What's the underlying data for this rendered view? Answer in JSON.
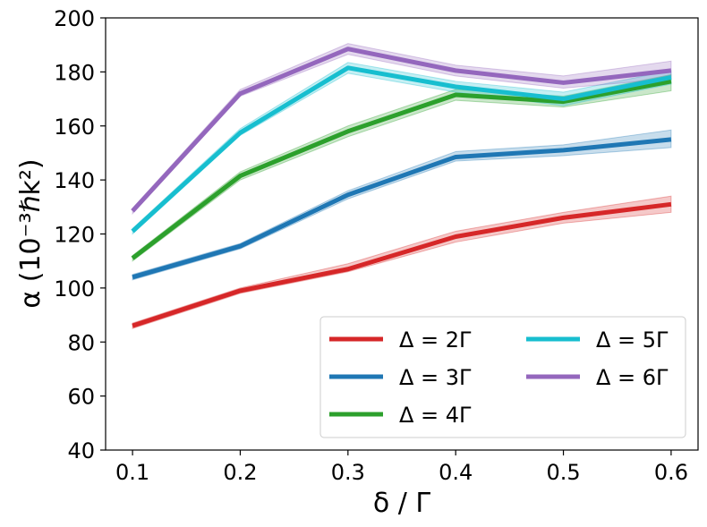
{
  "chart_data": {
    "type": "line",
    "title": "",
    "xlabel": "δ / Γ",
    "ylabel": "α (10⁻³ℏk²)",
    "x": [
      0.1,
      0.2,
      0.3,
      0.4,
      0.5,
      0.6
    ],
    "x_tick_labels": [
      "0.1",
      "0.2",
      "0.3",
      "0.4",
      "0.5",
      "0.6"
    ],
    "y_ticks": [
      40,
      60,
      80,
      100,
      120,
      140,
      160,
      180,
      200
    ],
    "y_tick_labels": [
      "40",
      "60",
      "80",
      "100",
      "120",
      "140",
      "160",
      "180",
      "200"
    ],
    "xlim": [
      0.075,
      0.625
    ],
    "ylim": [
      40,
      200
    ],
    "grid": false,
    "legend_position": "lower-right",
    "legend_columns": 2,
    "series": [
      {
        "name": "Δ = 2Γ",
        "color": "#d62728",
        "values": [
          86,
          99,
          107,
          119,
          126,
          131
        ],
        "lower": [
          85,
          98,
          106,
          117,
          124,
          128
        ],
        "upper": [
          87,
          100,
          109,
          121,
          128,
          134
        ]
      },
      {
        "name": "Δ = 3Γ",
        "color": "#1f77b4",
        "values": [
          104,
          115.5,
          134.5,
          148.5,
          151,
          155
        ],
        "lower": [
          103,
          114.5,
          133,
          147,
          149,
          152
        ],
        "upper": [
          105,
          116.5,
          136,
          150.5,
          153,
          158.5
        ]
      },
      {
        "name": "Δ = 4Γ",
        "color": "#2ca02c",
        "values": [
          111,
          141.5,
          158,
          171.5,
          169,
          176.5
        ],
        "lower": [
          110,
          140,
          156,
          169.5,
          167,
          173
        ],
        "upper": [
          112,
          143,
          160,
          173.5,
          171,
          179
        ]
      },
      {
        "name": "Δ = 5Γ",
        "color": "#17becf",
        "values": [
          121,
          157.5,
          181.5,
          174.5,
          170,
          178
        ],
        "lower": [
          120,
          156.5,
          179.5,
          172.5,
          167.5,
          175.5
        ],
        "upper": [
          122,
          159,
          183.5,
          176.5,
          172.5,
          180.5
        ]
      },
      {
        "name": "Δ = 6Γ",
        "color": "#9467bd",
        "values": [
          128.5,
          172,
          188.5,
          180.5,
          176,
          180.5
        ],
        "lower": [
          127.5,
          171,
          186.5,
          178.5,
          174,
          177.5
        ],
        "upper": [
          129.5,
          173.5,
          190.5,
          182.5,
          178.5,
          184
        ]
      }
    ]
  }
}
